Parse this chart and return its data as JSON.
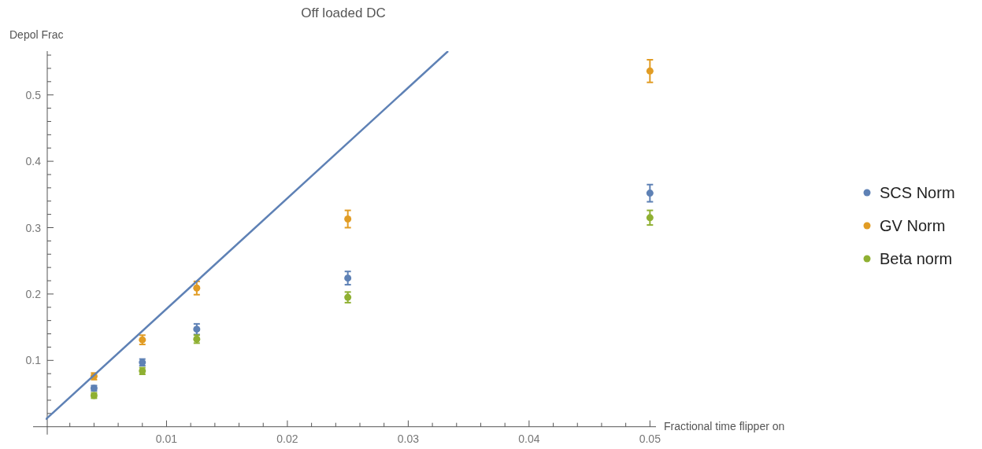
{
  "chart_data": {
    "type": "scatter",
    "title": "Off loaded DC",
    "xlabel": "Fractional time flipper on",
    "ylabel": "Depol Frac",
    "xlim": [
      0,
      0.0505
    ],
    "ylim": [
      0,
      0.566
    ],
    "xticks": [
      {
        "value": 0.002,
        "label": null
      },
      {
        "value": 0.004,
        "label": null
      },
      {
        "value": 0.006,
        "label": null
      },
      {
        "value": 0.008,
        "label": null
      },
      0.01,
      {
        "value": 0.012,
        "label": null
      },
      {
        "value": 0.014,
        "label": null
      },
      {
        "value": 0.016,
        "label": null
      },
      {
        "value": 0.018,
        "label": null
      },
      0.02,
      {
        "value": 0.022,
        "label": null
      },
      {
        "value": 0.024,
        "label": null
      },
      {
        "value": 0.026,
        "label": null
      },
      {
        "value": 0.028,
        "label": null
      },
      0.03,
      {
        "value": 0.032,
        "label": null
      },
      {
        "value": 0.034,
        "label": null
      },
      {
        "value": 0.036,
        "label": null
      },
      {
        "value": 0.038,
        "label": null
      },
      0.04,
      {
        "value": 0.042,
        "label": null
      },
      {
        "value": 0.044,
        "label": null
      },
      {
        "value": 0.046,
        "label": null
      },
      {
        "value": 0.048,
        "label": null
      },
      0.05
    ],
    "yticks": [
      {
        "value": 0.02,
        "label": null
      },
      {
        "value": 0.04,
        "label": null
      },
      {
        "value": 0.06,
        "label": null
      },
      {
        "value": 0.08,
        "label": null
      },
      0.1,
      {
        "value": 0.12,
        "label": null
      },
      {
        "value": 0.14,
        "label": null
      },
      {
        "value": 0.16,
        "label": null
      },
      {
        "value": 0.18,
        "label": null
      },
      0.2,
      {
        "value": 0.22,
        "label": null
      },
      {
        "value": 0.24,
        "label": null
      },
      {
        "value": 0.26,
        "label": null
      },
      {
        "value": 0.28,
        "label": null
      },
      0.3,
      {
        "value": 0.32,
        "label": null
      },
      {
        "value": 0.34,
        "label": null
      },
      {
        "value": 0.36,
        "label": null
      },
      {
        "value": 0.38,
        "label": null
      },
      0.4,
      {
        "value": 0.42,
        "label": null
      },
      {
        "value": 0.44,
        "label": null
      },
      {
        "value": 0.46,
        "label": null
      },
      {
        "value": 0.48,
        "label": null
      },
      0.5,
      {
        "value": 0.52,
        "label": null
      },
      {
        "value": 0.54,
        "label": null
      },
      {
        "value": 0.56,
        "label": null
      }
    ],
    "marker": "circle",
    "legend": "right",
    "grid": false,
    "series": [
      {
        "name": "SCS Norm",
        "color": "#5e81b5",
        "x": [
          0.004,
          0.008,
          0.0125,
          0.025,
          0.05
        ],
        "values": [
          0.058,
          0.097,
          0.147,
          0.224,
          0.352
        ],
        "errors": [
          0.004,
          0.005,
          0.008,
          0.01,
          0.013
        ]
      },
      {
        "name": "GV Norm",
        "color": "#e19c24",
        "x": [
          0.004,
          0.008,
          0.0125,
          0.025,
          0.05
        ],
        "values": [
          0.076,
          0.131,
          0.209,
          0.313,
          0.536
        ],
        "errors": [
          0.005,
          0.007,
          0.01,
          0.013,
          0.017
        ]
      },
      {
        "name": "Beta norm",
        "color": "#8fb032",
        "x": [
          0.004,
          0.008,
          0.0125,
          0.025,
          0.05
        ],
        "values": [
          0.047,
          0.084,
          0.132,
          0.195,
          0.315
        ],
        "errors": [
          0.004,
          0.005,
          0.006,
          0.008,
          0.011
        ]
      },
      {
        "type": "line",
        "color": "#5e81b5",
        "x": [
          0,
          0.0333
        ],
        "values": [
          0.011,
          0.566
        ],
        "line_style": "solid",
        "marker": "none"
      }
    ]
  }
}
